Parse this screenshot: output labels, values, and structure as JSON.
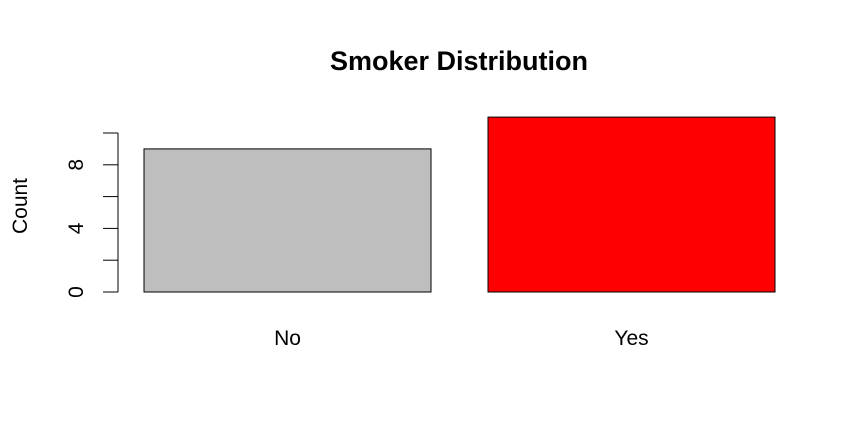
{
  "chart_data": {
    "type": "bar",
    "title": "Smoker Distribution",
    "xlabel": "",
    "ylabel": "Count",
    "categories": [
      "No",
      "Yes"
    ],
    "values": [
      9,
      11
    ],
    "colors": [
      "#bebebe",
      "#ff0000"
    ],
    "ylim": [
      0,
      11
    ],
    "yticks": [
      0,
      2,
      4,
      6,
      8,
      10
    ],
    "ytick_labels": [
      "0",
      "4",
      "8"
    ],
    "grid": false,
    "legend": "none"
  }
}
